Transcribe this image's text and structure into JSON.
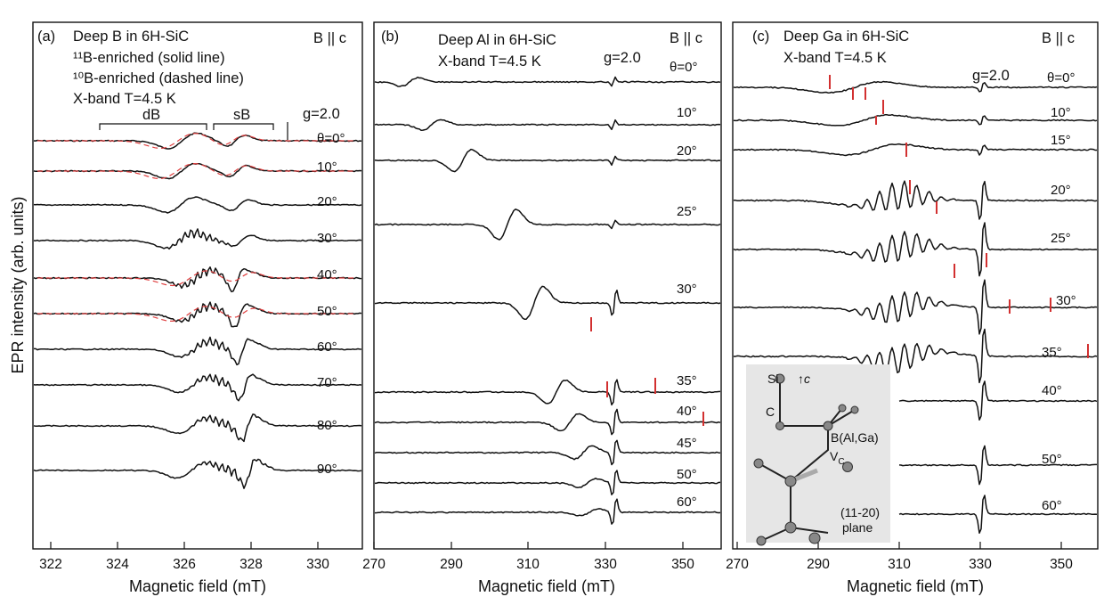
{
  "ylabel": "EPR intensity (arb. units)",
  "panels": [
    {
      "id": "a",
      "tag": "(a)",
      "title": "Deep B in 6H-SiC",
      "lines": [
        "¹¹B-enriched (solid line)",
        "¹⁰B-enriched (dashed line)",
        "X-band  T=4.5 K"
      ],
      "orientation": "B || c",
      "g_label": "g=2.0",
      "brackets": [
        "dB",
        "sB"
      ],
      "xlabel": "Magnetic field (mT)",
      "xticks": [
        322,
        324,
        326,
        328,
        330
      ],
      "angle_labels": [
        "θ=0°",
        "10°",
        "20°",
        "30°",
        "40°",
        "50°",
        "60°",
        "70°",
        "80°",
        "90°"
      ]
    },
    {
      "id": "b",
      "tag": "(b)",
      "title": "Deep Al in 6H-SiC",
      "lines": [
        "X-band  T=4.5 K"
      ],
      "orientation": "B || c",
      "g_label": "g=2.0",
      "xlabel": "Magnetic field (mT)",
      "xticks": [
        270,
        290,
        310,
        330,
        350
      ],
      "angle_labels": [
        "θ=0°",
        "10°",
        "20°",
        "25°",
        "30°",
        "35°",
        "40°",
        "45°",
        "50°",
        "60°"
      ]
    },
    {
      "id": "c",
      "tag": "(c)",
      "title": "Deep Ga in 6H-SiC",
      "lines": [
        "X-band  T=4.5 K"
      ],
      "orientation": "B || c",
      "g_label": "g=2.0",
      "xlabel": "Magnetic field (mT)",
      "xticks": [
        270,
        290,
        310,
        330,
        350
      ],
      "angle_labels": [
        "θ=0°",
        "10°",
        "15°",
        "20°",
        "25°",
        "30°",
        "35°",
        "40°",
        "50°",
        "60°"
      ],
      "inset": {
        "si": "Si",
        "c_axis": "↑c",
        "c": "C",
        "b": "B(Al,Ga)",
        "vc": "V",
        "vc_sub": "C",
        "plane1": "(11-20)",
        "plane2": "plane"
      }
    }
  ],
  "chart_data": [
    {
      "type": "line",
      "title": "Deep B in 6H-SiC",
      "xlabel": "Magnetic field (mT)",
      "ylabel": "EPR intensity (arb. units)",
      "xlim": [
        321,
        331
      ],
      "x_ticks": [
        322,
        324,
        326,
        328,
        330
      ],
      "series_labels": [
        "θ=0°",
        "10°",
        "20°",
        "30°",
        "40°",
        "50°",
        "60°",
        "70°",
        "80°",
        "90°"
      ],
      "dashed_overlay_angles": [
        "θ=0°",
        "10°",
        "40°",
        "50°"
      ],
      "g_marker_mT": 328.7
    },
    {
      "type": "line",
      "title": "Deep Al in 6H-SiC",
      "xlabel": "Magnetic field (mT)",
      "xlim": [
        270,
        360
      ],
      "x_ticks": [
        270,
        290,
        310,
        330,
        350
      ],
      "series_labels": [
        "θ=0°",
        "10°",
        "20°",
        "25°",
        "30°",
        "35°",
        "40°",
        "45°",
        "50°",
        "60°"
      ],
      "g_marker_mT": 330.5
    },
    {
      "type": "line",
      "title": "Deep Ga in 6H-SiC",
      "xlabel": "Magnetic field (mT)",
      "xlim": [
        270,
        360
      ],
      "x_ticks": [
        270,
        290,
        310,
        330,
        350
      ],
      "series_labels": [
        "θ=0°",
        "10°",
        "15°",
        "20°",
        "25°",
        "30°",
        "35°",
        "40°",
        "50°",
        "60°"
      ],
      "g_marker_mT": 330.5
    }
  ]
}
